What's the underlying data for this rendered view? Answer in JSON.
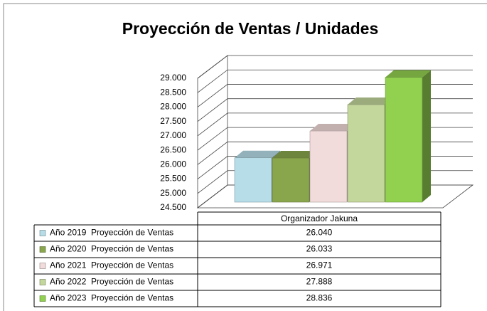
{
  "chart_data": {
    "type": "bar3d",
    "title": "Proyección de Ventas / Unidades",
    "categories": [
      "Organizador Jakuna"
    ],
    "series": [
      {
        "name": "Año 2019  Proyección de Ventas",
        "color": "#b7dde8",
        "values": [
          26040
        ],
        "value_labels": [
          "26.040"
        ]
      },
      {
        "name": "Año 2020  Proyección de Ventas",
        "color": "#8aa64d",
        "values": [
          26033
        ],
        "value_labels": [
          "26.033"
        ]
      },
      {
        "name": "Año 2021  Proyección de Ventas",
        "color": "#f2dcdb",
        "values": [
          26971
        ],
        "value_labels": [
          "26.971"
        ]
      },
      {
        "name": "Año 2022  Proyección de Ventas",
        "color": "#c3d69b",
        "values": [
          27888
        ],
        "value_labels": [
          "27.888"
        ]
      },
      {
        "name": "Año 2023  Proyección de Ventas",
        "color": "#92d050",
        "values": [
          28836
        ],
        "value_labels": [
          "28.836"
        ]
      }
    ],
    "ylim": [
      24500,
      29000
    ],
    "yticks": [
      {
        "value": 24500,
        "label": "24.500"
      },
      {
        "value": 25000,
        "label": "25.000"
      },
      {
        "value": 25500,
        "label": "25.500"
      },
      {
        "value": 26000,
        "label": "26.000"
      },
      {
        "value": 26500,
        "label": "26.500"
      },
      {
        "value": 27000,
        "label": "27.000"
      },
      {
        "value": 27500,
        "label": "27.500"
      },
      {
        "value": 28000,
        "label": "28.000"
      },
      {
        "value": 28500,
        "label": "28.500"
      },
      {
        "value": 29000,
        "label": "29.000"
      }
    ],
    "grid": true
  }
}
